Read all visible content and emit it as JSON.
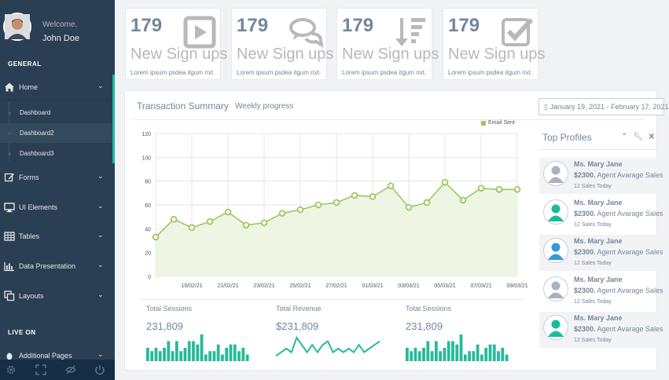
{
  "sidebar": {
    "welcome": "Welcome,",
    "username": "John Doe",
    "general_title": "GENERAL",
    "live_title": "LIVE ON",
    "menu": [
      {
        "label": "Home",
        "icon": "home-icon"
      },
      {
        "label": "Forms",
        "icon": "edit-icon"
      },
      {
        "label": "UI Elements",
        "icon": "desktop-icon"
      },
      {
        "label": "Tables",
        "icon": "table-icon"
      },
      {
        "label": "Data Presentation",
        "icon": "bar-chart-icon"
      },
      {
        "label": "Layouts",
        "icon": "clone-icon"
      },
      {
        "label": "Additional Pages",
        "icon": "bug-icon"
      }
    ],
    "submenu": [
      {
        "label": "Dashboard"
      },
      {
        "label": "Dashboard2"
      },
      {
        "label": "Dashboard3"
      }
    ],
    "footer_icons": [
      "settings-icon",
      "fullscreen-icon",
      "lock-icon",
      "logout-icon"
    ]
  },
  "tiles": [
    {
      "number": "179",
      "label": "New Sign ups",
      "desc": "Lorem ipsum psdea itgum rixt.",
      "icon": "play-square-icon"
    },
    {
      "number": "179",
      "label": "New Sign ups",
      "desc": "Lorem ipsum psdea itgum rixt.",
      "icon": "comments-icon"
    },
    {
      "number": "179",
      "label": "New Sign ups",
      "desc": "Lorem ipsum psdea itgum rixt.",
      "icon": "sort-amount-icon"
    },
    {
      "number": "179",
      "label": "New Sign ups",
      "desc": "Lorem ipsum psdea itgum rixt.",
      "icon": "check-square-icon"
    }
  ],
  "panel": {
    "title": "Transaction Summary",
    "subtitle": "Weekly progress",
    "daterange": "▯ January 19, 2021 - February 17, 2021"
  },
  "chart_data": {
    "type": "area",
    "series": [
      {
        "name": "Email Sent",
        "values": [
          33,
          48,
          41,
          46,
          54,
          43,
          45,
          53,
          56,
          60,
          62,
          68,
          67,
          76,
          58,
          62,
          79,
          64,
          74,
          73,
          73
        ]
      }
    ],
    "x_tick_labels": [
      "19/02/21",
      "21/02/21",
      "23/02/21",
      "25/02/21",
      "27/02/21",
      "01/03/21",
      "03/03/21",
      "05/03/21",
      "07/03/21",
      "09/03/21"
    ],
    "y_ticks": [
      0,
      20,
      40,
      60,
      80,
      100,
      120
    ],
    "ylim": [
      0,
      120
    ],
    "grid": true,
    "legend_position": "top-right",
    "color": "#9bc75f"
  },
  "summaries": [
    {
      "label": "Total Sessions",
      "value": "231,809",
      "kind": "bars",
      "values": [
        4,
        3,
        4,
        3,
        4,
        6,
        3,
        6,
        3,
        4,
        6,
        6,
        5,
        8,
        2,
        3,
        3,
        5,
        2,
        4,
        5,
        5,
        3,
        4,
        2
      ]
    },
    {
      "label": "Total Revenue",
      "value": "$231,809",
      "kind": "line",
      "values": [
        1,
        2,
        3,
        2,
        6,
        4,
        2,
        4,
        2,
        4,
        5,
        2,
        3,
        2,
        3,
        2,
        4,
        2,
        3,
        4,
        5
      ]
    },
    {
      "label": "Total Sessions",
      "value": "231,809",
      "kind": "bars",
      "values": [
        4,
        3,
        4,
        3,
        4,
        6,
        3,
        6,
        3,
        4,
        6,
        6,
        5,
        8,
        2,
        3,
        3,
        5,
        2,
        4,
        5,
        5,
        3,
        4,
        2
      ]
    }
  ],
  "top_profiles": {
    "title": "Top Profiles",
    "profiles": [
      {
        "name": "Ms. Mary Jane",
        "amount": "$2300.",
        "role": "Agent Avarage Sales",
        "sales": "12 Sales Today",
        "color": "#aab2bd",
        "shade": true
      },
      {
        "name": "Ms. Mary Jane",
        "amount": "$2300.",
        "role": "Agent Avarage Sales",
        "sales": "12 Sales Today",
        "color": "#1abb9c",
        "shade": false
      },
      {
        "name": "Ms. Mary Jane",
        "amount": "$2300.",
        "role": "Agent Avarage Sales",
        "sales": "12 Sales Today",
        "color": "#3498db",
        "shade": true
      },
      {
        "name": "Ms. Mary Jane",
        "amount": "$2300.",
        "role": "Agent Avarage Sales",
        "sales": "12 Sales Today",
        "color": "#aab2bd",
        "shade": false
      },
      {
        "name": "Ms. Mary Jane",
        "amount": "$2300.",
        "role": "Agent Avarage Sales",
        "sales": "12 Sales Today",
        "color": "#1abb9c",
        "shade": true
      }
    ]
  }
}
